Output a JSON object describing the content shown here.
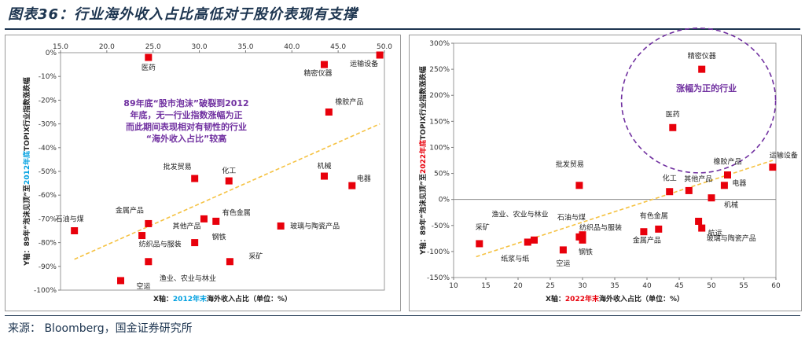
{
  "figure": {
    "title": "图表36：行业海外收入占比高低对于股价表现有支撑",
    "source": "来源：  Bloomberg，国金证券研究所"
  },
  "chart_data": [
    {
      "type": "scatter",
      "xlabel_prefix": "X轴：",
      "xlabel_highlight": "2012年末",
      "xlabel_suffix": "海外收入占比（单位：%）",
      "ylabel_prefix": "Y轴：89年“泡沫见顶”至",
      "ylabel_highlight": "2012年底",
      "ylabel_suffix": "TOPIX行业指数涨跌幅",
      "highlight_color": "#00a0e0",
      "x_axis_position": "top",
      "xlim": [
        15,
        50
      ],
      "ylim": [
        -100,
        0
      ],
      "x_ticks": [
        "15.0",
        "20.0",
        "25.0",
        "30.0",
        "35.0",
        "40.0",
        "45.0",
        "50.0"
      ],
      "y_ticks": [
        "0%",
        "-10%",
        "-20%",
        "-30%",
        "-40%",
        "-50%",
        "-60%",
        "-70%",
        "-80%",
        "-90%",
        "-100%"
      ],
      "points": [
        {
          "label": "医药",
          "x": 24.5,
          "y": -2
        },
        {
          "label": "运输设备",
          "x": 49.5,
          "y": -1
        },
        {
          "label": "精密仪器",
          "x": 43.5,
          "y": -5
        },
        {
          "label": "橡胶产品",
          "x": 44.0,
          "y": -25
        },
        {
          "label": "机械",
          "x": 43.5,
          "y": -52
        },
        {
          "label": "电器",
          "x": 46.5,
          "y": -56
        },
        {
          "label": "化工",
          "x": 33.2,
          "y": -54
        },
        {
          "label": "批发贸易",
          "x": 29.5,
          "y": -53
        },
        {
          "label": "石油与煤",
          "x": 16.5,
          "y": -75
        },
        {
          "label": "金属产品",
          "x": 24.5,
          "y": -72
        },
        {
          "label": "其他产品",
          "x": 30.5,
          "y": -70
        },
        {
          "label": "有色金属",
          "x": 31.8,
          "y": -71
        },
        {
          "label": "钢铁",
          "x": 29.5,
          "y": -80
        },
        {
          "label": "玻璃与陶瓷产品",
          "x": 38.8,
          "y": -73
        },
        {
          "label": "纺织品与服装",
          "x": 23.8,
          "y": -77
        },
        {
          "label": "采矿",
          "x": 33.3,
          "y": -88
        },
        {
          "label": "渔业、农业与林业",
          "x": 24.5,
          "y": -88
        },
        {
          "label": "空运",
          "x": 21.5,
          "y": -96
        }
      ],
      "trendline": {
        "x": [
          16.5,
          49.5
        ],
        "y": [
          -87,
          -30
        ],
        "color": "#f5c242"
      },
      "annotation": [
        "89年底“股市泡沫”破裂到2012",
        "年底，无一行业指数涨幅为正",
        "而此期间表现相对有韧性的行业",
        "“海外收入占比”较高"
      ],
      "marker_color": "#e8000b"
    },
    {
      "type": "scatter",
      "xlabel_prefix": "X轴：",
      "xlabel_highlight": "2022年末",
      "xlabel_suffix": "海外收入占比（单位：%）",
      "ylabel_prefix": "Y轴：89年“泡沫见顶”至",
      "ylabel_highlight": "2022年底",
      "ylabel_suffix": "TOPIX行业指数涨跌幅",
      "highlight_color": "#e8000b",
      "x_axis_position": "bottom",
      "xlim": [
        10,
        60
      ],
      "ylim": [
        -150,
        300
      ],
      "x_ticks": [
        "10",
        "15",
        "20",
        "25",
        "30",
        "35",
        "40",
        "45",
        "50",
        "55",
        "60"
      ],
      "y_ticks": [
        "300%",
        "250%",
        "200%",
        "150%",
        "100%",
        "50%",
        "0%",
        "-50%",
        "-100%",
        "-150%"
      ],
      "points": [
        {
          "label": "精密仪器",
          "x": 48.5,
          "y": 250
        },
        {
          "label": "医药",
          "x": 44.0,
          "y": 138
        },
        {
          "label": "运输设备",
          "x": 59.5,
          "y": 62
        },
        {
          "label": "橡胶产品",
          "x": 52.5,
          "y": 47
        },
        {
          "label": "电器",
          "x": 52.0,
          "y": 27
        },
        {
          "label": "化工",
          "x": 43.5,
          "y": 15
        },
        {
          "label": "其他产品",
          "x": 46.5,
          "y": 17
        },
        {
          "label": "机械",
          "x": 50.0,
          "y": 3
        },
        {
          "label": "批发贸易",
          "x": 29.5,
          "y": 27
        },
        {
          "label": "有色金属",
          "x": 41.8,
          "y": -57
        },
        {
          "label": "金属产品",
          "x": 39.5,
          "y": -62
        },
        {
          "label": "玻璃与陶瓷产品",
          "x": 48.5,
          "y": -55
        },
        {
          "label": "航运",
          "x": 48.0,
          "y": -42
        },
        {
          "label": "纺织品与服装",
          "x": 30.0,
          "y": -68
        },
        {
          "label": "石油与煤",
          "x": 29.5,
          "y": -72
        },
        {
          "label": "钢铁",
          "x": 30.0,
          "y": -78
        },
        {
          "label": "采矿",
          "x": 14.0,
          "y": -85
        },
        {
          "label": "渔业、农业与林业",
          "x": 22.5,
          "y": -78
        },
        {
          "label": "纸浆与纸",
          "x": 21.5,
          "y": -82
        },
        {
          "label": "空运",
          "x": 27.0,
          "y": -97
        }
      ],
      "trendline": {
        "x": [
          13.5,
          59.5
        ],
        "y": [
          -110,
          75
        ],
        "color": "#f5c242"
      },
      "circle_label": "涨幅为正的行业",
      "marker_color": "#e8000b"
    }
  ]
}
